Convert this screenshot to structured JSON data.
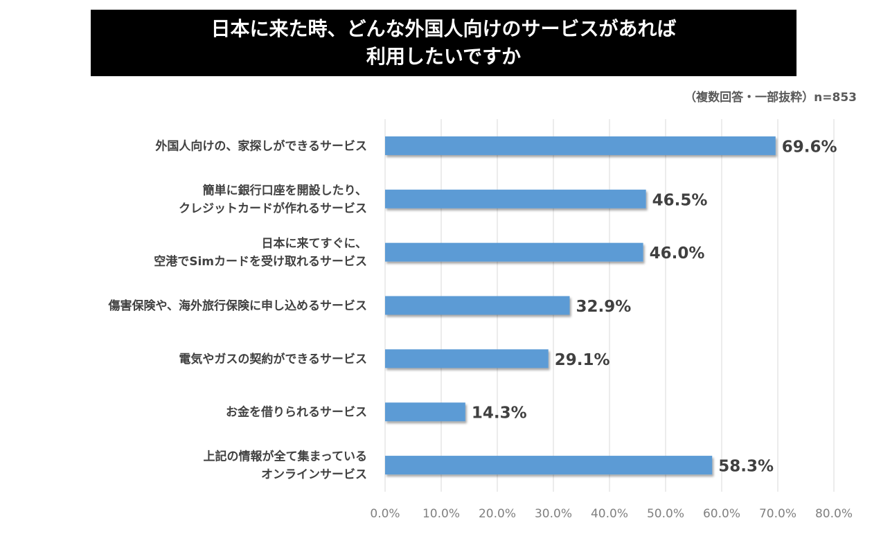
{
  "title": {
    "line1": "日本に来た時、どんな外国人向けのサービスがあれば",
    "line2": "利用したいですか"
  },
  "note": "（複数回答・一部抜粋）n=853",
  "chart_data": {
    "type": "bar",
    "orientation": "horizontal",
    "categories": [
      [
        "外国人向けの、家探しができるサービス"
      ],
      [
        "簡単に銀行口座を開設したり、",
        "クレジットカードが作れるサービス"
      ],
      [
        "日本に来てすぐに、",
        "空港でSimカードを受け取れるサービス"
      ],
      [
        "傷害保険や、海外旅行保険に申し込めるサービス"
      ],
      [
        "電気やガスの契約ができるサービス"
      ],
      [
        "お金を借りられるサービス"
      ],
      [
        "上記の情報が全て集まっている",
        "オンラインサービス"
      ]
    ],
    "values": [
      69.6,
      46.5,
      46.0,
      32.9,
      29.1,
      14.3,
      58.3
    ],
    "value_labels": [
      "69.6%",
      "46.5%",
      "46.0%",
      "32.9%",
      "29.1%",
      "14.3%",
      "58.3%"
    ],
    "xlim": [
      0,
      80
    ],
    "ticks": [
      0,
      10,
      20,
      30,
      40,
      50,
      60,
      70,
      80
    ],
    "tick_labels": [
      "0.0%",
      "10.0%",
      "20.0%",
      "30.0%",
      "40.0%",
      "50.0%",
      "60.0%",
      "70.0%",
      "80.0%"
    ],
    "grid": "vertical",
    "bar_color": "#5b9bd5",
    "grid_color": "#d9d9d9"
  }
}
